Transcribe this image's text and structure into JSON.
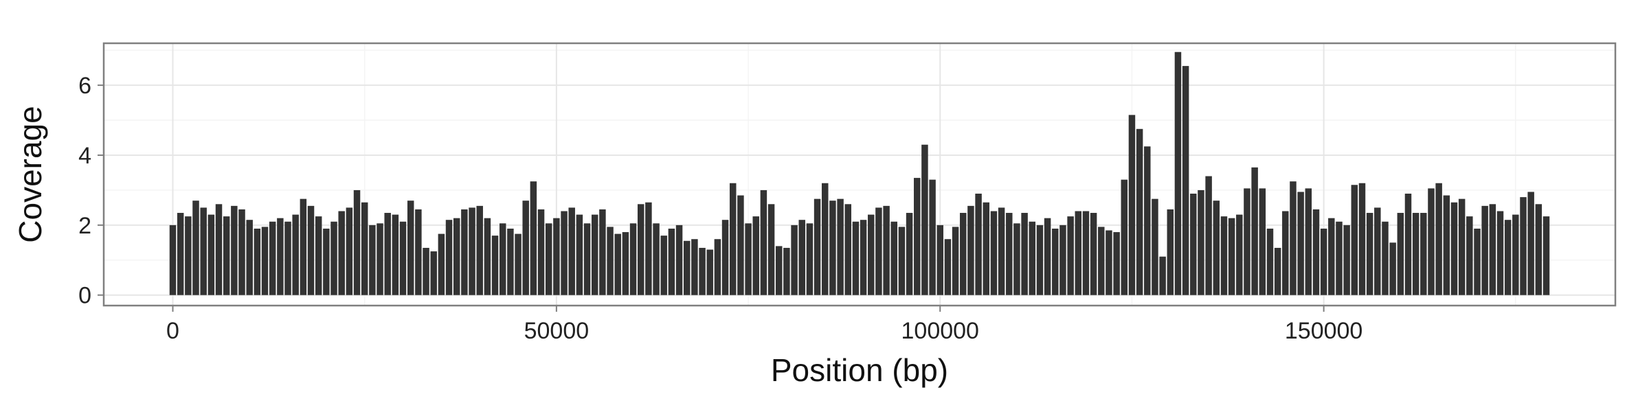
{
  "chart_data": {
    "type": "bar",
    "title": "",
    "xlabel": "Position (bp)",
    "ylabel": "Coverage",
    "xlim": [
      -9000,
      188000
    ],
    "ylim": [
      -0.3,
      7.2
    ],
    "x_ticks": [
      0,
      50000,
      100000,
      150000
    ],
    "x_tick_labels": [
      "0",
      "50000",
      "100000",
      "150000"
    ],
    "y_ticks": [
      0,
      2,
      4,
      6
    ],
    "y_tick_labels": [
      "0",
      "2",
      "4",
      "6"
    ],
    "grid": true,
    "legend": "none",
    "bar_width": 850,
    "bar_color": "#333333",
    "x": [
      0,
      1000,
      2000,
      3000,
      4000,
      5000,
      6000,
      7000,
      8000,
      9000,
      10000,
      11000,
      12000,
      13000,
      14000,
      15000,
      16000,
      17000,
      18000,
      19000,
      20000,
      21000,
      22000,
      23000,
      24000,
      25000,
      26000,
      27000,
      28000,
      29000,
      30000,
      31000,
      32000,
      33000,
      34000,
      35000,
      36000,
      37000,
      38000,
      39000,
      40000,
      41000,
      42000,
      43000,
      44000,
      45000,
      46000,
      47000,
      48000,
      49000,
      50000,
      51000,
      52000,
      53000,
      54000,
      55000,
      56000,
      57000,
      58000,
      59000,
      60000,
      61000,
      62000,
      63000,
      64000,
      65000,
      66000,
      67000,
      68000,
      69000,
      70000,
      71000,
      72000,
      73000,
      74000,
      75000,
      76000,
      77000,
      78000,
      79000,
      80000,
      81000,
      82000,
      83000,
      84000,
      85000,
      86000,
      87000,
      88000,
      89000,
      90000,
      91000,
      92000,
      93000,
      94000,
      95000,
      96000,
      97000,
      98000,
      99000,
      100000,
      101000,
      102000,
      103000,
      104000,
      105000,
      106000,
      107000,
      108000,
      109000,
      110000,
      111000,
      112000,
      113000,
      114000,
      115000,
      116000,
      117000,
      118000,
      119000,
      120000,
      121000,
      122000,
      123000,
      124000,
      125000,
      126000,
      127000,
      128000,
      129000,
      130000,
      131000,
      132000,
      133000,
      134000,
      135000,
      136000,
      137000,
      138000,
      139000,
      140000,
      141000,
      142000,
      143000,
      144000,
      145000,
      146000,
      147000,
      148000,
      149000,
      150000,
      151000,
      152000,
      153000,
      154000,
      155000,
      156000,
      157000,
      158000,
      159000,
      160000,
      161000,
      162000,
      163000,
      164000,
      165000,
      166000,
      167000,
      168000,
      169000,
      170000,
      171000,
      172000,
      173000,
      174000,
      175000,
      176000,
      177000,
      178000,
      179000
    ],
    "values": [
      2.0,
      2.35,
      2.25,
      2.7,
      2.5,
      2.3,
      2.6,
      2.25,
      2.55,
      2.45,
      2.15,
      1.9,
      1.95,
      2.1,
      2.2,
      2.1,
      2.3,
      2.75,
      2.55,
      2.25,
      1.9,
      2.1,
      2.4,
      2.5,
      3.0,
      2.65,
      2.0,
      2.05,
      2.35,
      2.3,
      2.1,
      2.7,
      2.45,
      1.35,
      1.25,
      1.75,
      2.15,
      2.2,
      2.45,
      2.5,
      2.55,
      2.2,
      1.7,
      2.05,
      1.9,
      1.75,
      2.7,
      3.25,
      2.45,
      2.05,
      2.2,
      2.4,
      2.5,
      2.3,
      2.05,
      2.3,
      2.45,
      1.95,
      1.75,
      1.8,
      2.05,
      2.6,
      2.65,
      2.05,
      1.7,
      1.9,
      2.0,
      1.55,
      1.6,
      1.35,
      1.3,
      1.6,
      2.15,
      3.2,
      2.85,
      2.05,
      2.25,
      3.0,
      2.6,
      1.4,
      1.35,
      2.0,
      2.15,
      2.05,
      2.75,
      3.2,
      2.7,
      2.75,
      2.6,
      2.1,
      2.15,
      2.3,
      2.5,
      2.55,
      2.1,
      1.95,
      2.35,
      3.35,
      4.3,
      3.3,
      2.0,
      1.6,
      1.95,
      2.35,
      2.55,
      2.9,
      2.65,
      2.4,
      2.5,
      2.35,
      2.05,
      2.35,
      2.1,
      2.0,
      2.2,
      1.9,
      2.0,
      2.25,
      2.4,
      2.4,
      2.35,
      1.95,
      1.85,
      1.8,
      3.3,
      5.15,
      4.75,
      4.25,
      2.75,
      1.1,
      2.45,
      6.95,
      6.55,
      2.9,
      3.0,
      3.4,
      2.7,
      2.25,
      2.2,
      2.3,
      3.05,
      3.65,
      3.05,
      1.9,
      1.35,
      2.4,
      3.25,
      2.95,
      3.05,
      2.45,
      1.9,
      2.2,
      2.1,
      2.0,
      3.15,
      3.2,
      2.35,
      2.5,
      2.1,
      1.5,
      2.35,
      2.9,
      2.35,
      2.35,
      3.05,
      3.2,
      2.85,
      2.65,
      2.75,
      2.25,
      1.9,
      2.55,
      2.6,
      2.4,
      2.15,
      2.3,
      2.8,
      2.95,
      2.6,
      2.25
    ]
  }
}
